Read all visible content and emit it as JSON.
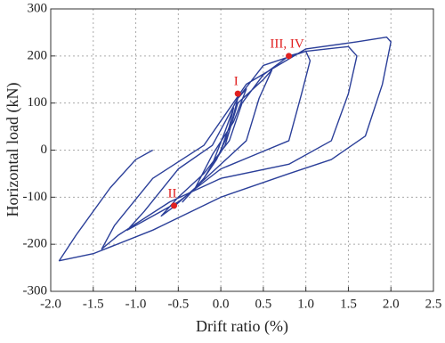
{
  "chart_data": {
    "type": "line",
    "xlabel": "Drift ratio (%)",
    "ylabel": "Horizontal  load (kN)",
    "xlim": [
      -2.0,
      2.5
    ],
    "ylim": [
      -300,
      300
    ],
    "xticks": [
      {
        "value": -2.0,
        "label": "-2.0"
      },
      -1.5,
      {
        "value": -1.0,
        "label": "-1.0"
      },
      -0.5,
      {
        "value": 0,
        "label": "0.0"
      },
      0.5,
      {
        "value": 1.0,
        "label": "1.0"
      },
      1.5,
      {
        "value": 2.0,
        "label": "2.0"
      },
      2.5
    ],
    "yticks": [
      -300,
      -200,
      -100,
      0,
      100,
      200,
      300
    ],
    "grid": true,
    "series": [
      {
        "color": "#2b3f99",
        "x": [
          0,
          0.1,
          0.15,
          0.05,
          -0.1,
          -0.2,
          -0.05,
          0.1,
          0.2,
          0.3,
          0.15,
          -0.1,
          -0.3,
          -0.45,
          -0.2,
          0.05,
          0.2,
          0.5,
          0.6,
          0.45,
          0.3,
          0.0,
          -0.3,
          -0.55,
          -0.7,
          -0.5,
          -0.2,
          0.1,
          0.25,
          0.5,
          0.8,
          1.0,
          1.05,
          0.95,
          0.8,
          0.4,
          0.0,
          -0.5,
          -1.0,
          -1.1,
          -0.9,
          -0.5,
          -0.1,
          0.2,
          0.5,
          1.0,
          1.5,
          1.6,
          1.5,
          1.3,
          0.8,
          0.0,
          -0.6,
          -1.2,
          -1.4,
          -1.25,
          -0.8,
          -0.2,
          0.3,
          1.0,
          1.6,
          1.95,
          2.0,
          1.9,
          1.7,
          1.3,
          0.8,
          0.0,
          -0.8,
          -1.5,
          -1.9,
          -1.7,
          -1.3,
          -1.0,
          -0.8
        ],
        "y": [
          0,
          50,
          90,
          40,
          -30,
          -60,
          -20,
          40,
          110,
          130,
          60,
          -10,
          -80,
          -110,
          -60,
          10,
          100,
          150,
          170,
          110,
          20,
          -30,
          -80,
          -120,
          -140,
          -100,
          -50,
          20,
          100,
          160,
          200,
          210,
          190,
          120,
          20,
          -10,
          -40,
          -110,
          -160,
          -170,
          -130,
          -40,
          10,
          110,
          180,
          210,
          220,
          200,
          120,
          20,
          -30,
          -60,
          -110,
          -180,
          -210,
          -160,
          -60,
          10,
          140,
          215,
          230,
          240,
          230,
          140,
          30,
          -20,
          -50,
          -100,
          -170,
          -220,
          -235,
          -180,
          -80,
          -20,
          0
        ]
      }
    ],
    "annotations": [
      {
        "label": "I",
        "x": 0.2,
        "y": 120,
        "color": "#e02020"
      },
      {
        "label": "II",
        "x": -0.55,
        "y": -118,
        "color": "#e02020"
      },
      {
        "label": "III, IV",
        "x": 0.8,
        "y": 200,
        "color": "#e02020"
      }
    ]
  }
}
